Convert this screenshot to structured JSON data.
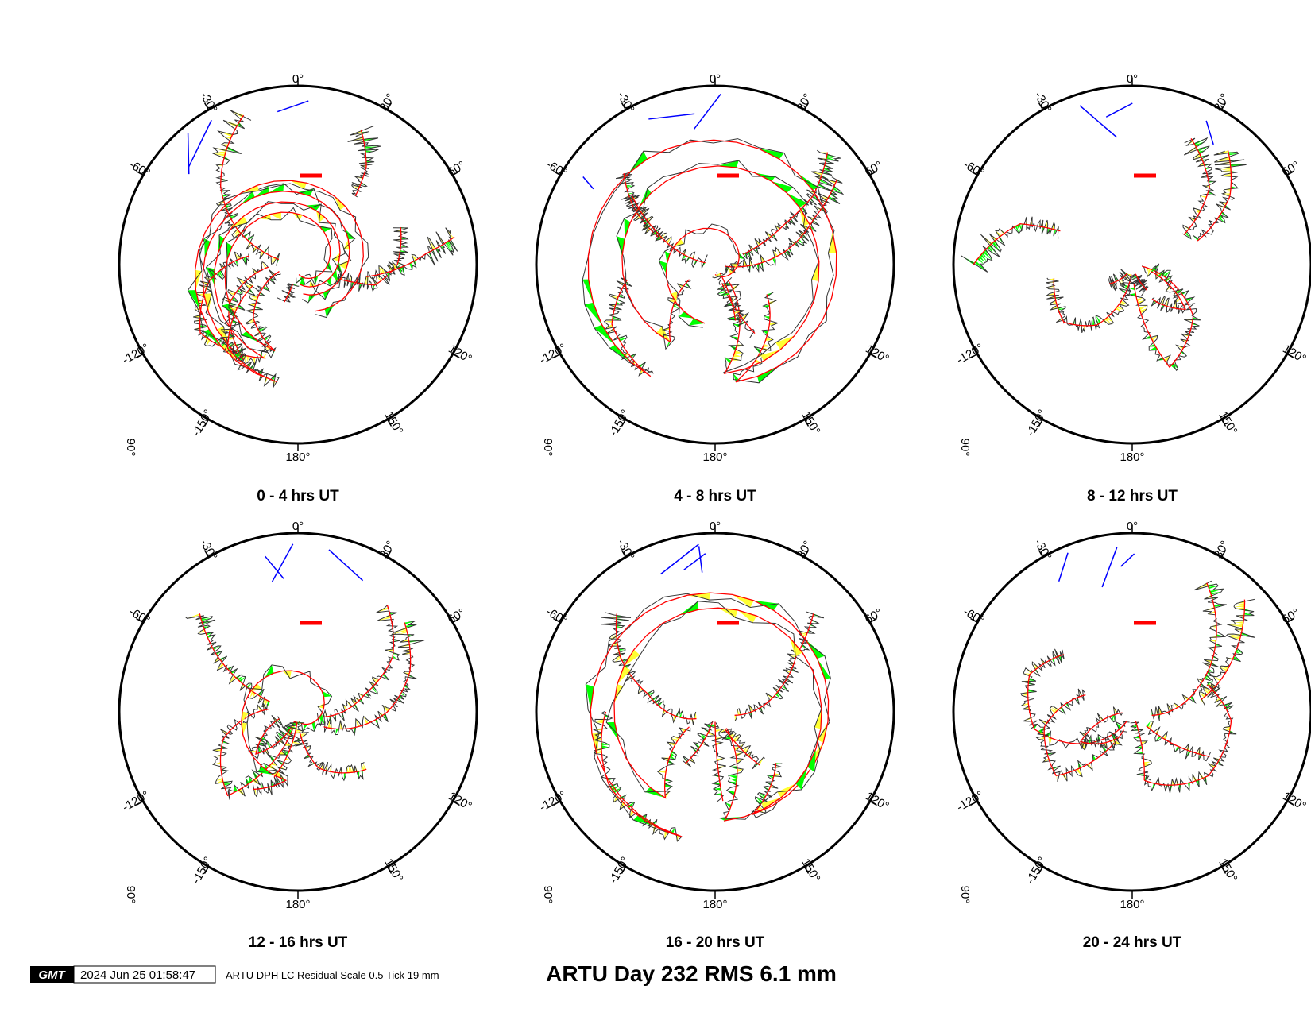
{
  "chart_data": {
    "type": "polar-skyplot",
    "azimuth_tick_labels": [
      "0°",
      "30°",
      "60°",
      "120°",
      "150°",
      "180°",
      "-150°",
      "-120°",
      "-60°",
      "-30°"
    ],
    "zenith_label": "90°",
    "panels": [
      {
        "title": "0 - 4 hrs UT",
        "tracks": [
          {
            "az": [
              -20,
              -45,
              -60,
              -75
            ],
            "el": [
              10,
              35,
              55,
              80
            ]
          },
          {
            "az": [
              25,
              35,
              40
            ],
            "el": [
              15,
              30,
              45
            ]
          },
          {
            "az": [
              70,
              90,
              105,
              110
            ],
            "el": [
              35,
              40,
              50,
              70
            ]
          },
          {
            "az": [
              80,
              85,
              100
            ],
            "el": [
              10,
              25,
              55
            ]
          },
          {
            "az": [
              -80,
              -100,
              -125,
              -160,
              175
            ],
            "el": [
              65,
              45,
              30,
              40,
              80
            ]
          },
          {
            "az": [
              -95,
              -120,
              -150,
              170
            ],
            "el": [
              75,
              50,
              35,
              75
            ]
          },
          {
            "az": [
              -110,
              -140,
              -165,
              175
            ],
            "el": [
              80,
              55,
              45,
              85
            ]
          },
          {
            "az": [
              -115,
              -140,
              -170,
              160
            ],
            "el": [
              65,
              35,
              30,
              65
            ]
          },
          {
            "az": [
              -160,
              -165
            ],
            "el": [
              70,
              80
            ]
          }
        ]
      },
      {
        "title": "4 - 8 hrs UT",
        "tracks": [
          {
            "az": [
              -45,
              -55,
              -65
            ],
            "el": [
              25,
              40,
              60
            ]
          },
          {
            "az": [
              -80,
              -60,
              -50
            ],
            "el": [
              85,
              55,
              35
            ]
          },
          {
            "az": [
              45,
              55,
              60,
              70
            ],
            "el": [
              10,
              30,
              50,
              75
            ]
          },
          {
            "az": [
              55,
              65,
              80,
              100
            ],
            "el": [
              15,
              35,
              55,
              85
            ]
          },
          {
            "az": [
              -100,
              -120,
              -150,
              170,
              120
            ],
            "el": [
              45,
              30,
              25,
              30,
              60
            ]
          },
          {
            "az": [
              -120,
              -150,
              175,
              140
            ],
            "el": [
              75,
              45,
              35,
              80
            ]
          },
          {
            "az": [
              -170,
              180
            ],
            "el": [
              60,
              85
            ]
          },
          {
            "az": [
              150,
              160
            ],
            "el": [
              50,
              80
            ]
          },
          {
            "az": [
              160,
              150
            ],
            "el": [
              60,
              85
            ]
          }
        ]
      },
      {
        "title": "8 - 12 hrs UT",
        "tracks": [
          {
            "az": [
              -65,
              -70,
              -90
            ],
            "el": [
              50,
              30,
              10
            ]
          },
          {
            "az": [
              -100,
              -130,
              -150,
              -175
            ],
            "el": [
              50,
              45,
              55,
              85
            ]
          },
          {
            "az": [
              25,
              45,
              60
            ],
            "el": [
              20,
              35,
              60
            ]
          },
          {
            "az": [
              40,
              55,
              70
            ],
            "el": [
              15,
              30,
              55
            ]
          },
          {
            "az": [
              100,
              130,
              160,
              175
            ],
            "el": [
              85,
              50,
              35,
              80
            ]
          },
          {
            "az": [
              110,
              130,
              150
            ],
            "el": [
              80,
              55,
              70
            ]
          },
          {
            "az": [
              -130,
              -150
            ],
            "el": [
              75,
              85
            ]
          },
          {
            "az": [
              150,
              160
            ],
            "el": [
              75,
              85
            ]
          }
        ]
      },
      {
        "title": "12 - 16 hrs UT",
        "tracks": [
          {
            "az": [
              -45,
              -55,
              -70
            ],
            "el": [
              20,
              40,
              75
            ]
          },
          {
            "az": [
              -85,
              -110,
              -140,
              -165
            ],
            "el": [
              75,
              50,
              35,
              85
            ]
          },
          {
            "az": [
              -110,
              -135,
              -160
            ],
            "el": [
              80,
              60,
              85
            ]
          },
          {
            "az": [
              40,
              60,
              75,
              105
            ],
            "el": [
              20,
              35,
              55,
              80
            ]
          },
          {
            "az": [
              50,
              70,
              90,
              120
            ],
            "el": [
              20,
              30,
              45,
              75
            ]
          },
          {
            "az": [
              -150,
              -170,
              175
            ],
            "el": [
              45,
              55,
              85
            ]
          },
          {
            "az": [
              -160,
              -175
            ],
            "el": [
              55,
              85
            ]
          },
          {
            "az": [
              130,
              160,
              175
            ],
            "el": [
              45,
              60,
              80
            ]
          }
        ]
      },
      {
        "title": "16 - 20 hrs UT",
        "tracks": [
          {
            "az": [
              -45,
              -60,
              -75,
              -110
            ],
            "el": [
              20,
              35,
              55,
              80
            ]
          },
          {
            "az": [
              45,
              55,
              70,
              100
            ],
            "el": [
              20,
              40,
              55,
              80
            ]
          },
          {
            "az": [
              -90,
              -125,
              -165,
              160,
              130
            ],
            "el": [
              35,
              25,
              25,
              35,
              50
            ]
          },
          {
            "az": [
              -120,
              -150,
              175,
              145
            ],
            "el": [
              75,
              40,
              35,
              80
            ]
          },
          {
            "az": [
              -150,
              -165
            ],
            "el": [
              60,
              85
            ]
          },
          {
            "az": [
              175,
              180
            ],
            "el": [
              45,
              85
            ]
          },
          {
            "az": [
              140,
              150
            ],
            "el": [
              55,
              80
            ]
          }
        ]
      },
      {
        "title": "20 - 24 hrs UT",
        "tracks": [
          {
            "az": [
              -50,
              -70,
              -100,
              -150
            ],
            "el": [
              45,
              35,
              40,
              85
            ]
          },
          {
            "az": [
              -70,
              -100,
              -130,
              -155
            ],
            "el": [
              65,
              45,
              40,
              80
            ]
          },
          {
            "az": [
              -95,
              -120,
              -150
            ],
            "el": [
              85,
              60,
              75
            ]
          },
          {
            "az": [
              30,
              50,
              70,
              100
            ],
            "el": [
              15,
              35,
              55,
              80
            ]
          },
          {
            "az": [
              45,
              60,
              80
            ],
            "el": [
              10,
              30,
              55
            ]
          },
          {
            "az": [
              70,
              95,
              130,
              170
            ],
            "el": [
              50,
              40,
              40,
              55
            ]
          },
          {
            "az": [
              170,
              160
            ],
            "el": [
              55,
              85
            ]
          },
          {
            "az": [
              120,
              135
            ],
            "el": [
              45,
              80
            ]
          }
        ]
      }
    ],
    "title": "ARTU Day 232 RMS 6.1 mm",
    "colors": {
      "track": "#ff0000",
      "residual": "#333333",
      "positive": "#ffff33",
      "negative": "#00ff00",
      "low_elevation": "#0000ff",
      "scale_bar": "#ff0000"
    }
  },
  "footer": {
    "timestamp": "2024 Jun 25 01:58:47",
    "caption": "ARTU DPH LC Residual Scale 0.5 Tick 19 mm"
  }
}
